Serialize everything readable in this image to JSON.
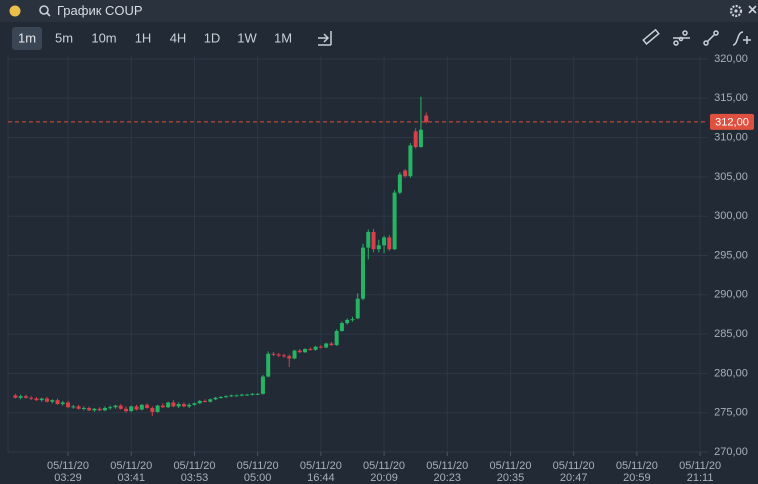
{
  "window": {
    "title": "График COUP"
  },
  "toolbar": {
    "intervals": [
      "1m",
      "5m",
      "10m",
      "1H",
      "4H",
      "1D",
      "1W",
      "1M"
    ],
    "selected": 0
  },
  "chart_data": {
    "type": "candlestick",
    "up_color": "#27b364",
    "down_color": "#d8404b",
    "x": [
      -10,
      -9,
      -8,
      -7,
      -6,
      -5,
      -4,
      -3,
      -2,
      -1,
      0,
      1,
      2,
      3,
      4,
      5,
      6,
      7,
      8,
      9,
      10,
      11,
      12,
      13,
      14,
      15,
      16,
      17,
      18,
      19,
      20,
      21,
      22,
      23,
      24,
      25,
      26,
      27,
      28,
      29,
      30,
      31,
      32,
      33,
      34,
      35,
      36,
      37,
      38,
      39,
      40,
      41,
      42,
      43,
      44,
      45,
      46,
      47,
      48,
      49,
      50,
      51,
      52,
      53,
      54,
      55,
      56,
      57,
      58,
      59,
      60,
      61,
      62,
      63,
      64,
      65,
      66,
      67,
      68
    ],
    "open": [
      277.2,
      276.9,
      277.1,
      276.9,
      276.8,
      276.6,
      276.8,
      276.4,
      276.6,
      276.1,
      276.3,
      275.7,
      275.8,
      275.5,
      275.6,
      275.3,
      275.5,
      275.3,
      275.6,
      275.7,
      275.9,
      275.5,
      275.2,
      275.8,
      275.4,
      276.0,
      275.6,
      275.1,
      275.9,
      275.7,
      276.3,
      275.8,
      276.1,
      275.8,
      276.0,
      276.2,
      276.5,
      276.4,
      276.7,
      276.9,
      277.0,
      277.1,
      277.2,
      277.2,
      277.3,
      277.3,
      277.4,
      277.4,
      279.6,
      282.5,
      282.4,
      282.3,
      282.2,
      281.9,
      282.9,
      282.7,
      283.1,
      283.0,
      283.4,
      283.3,
      283.8,
      283.6,
      285.4,
      286.4,
      286.8,
      287.0,
      289.5,
      296.0,
      298.0,
      295.8,
      296.3,
      297.3,
      295.8,
      303.0,
      305.8,
      305.1,
      310.8,
      308.8,
      312.8
    ],
    "high": [
      277.4,
      277.3,
      277.3,
      277.1,
      277.0,
      276.9,
      277.0,
      276.7,
      276.8,
      276.5,
      276.5,
      276.0,
      276.0,
      275.8,
      275.8,
      275.6,
      275.7,
      275.8,
      275.9,
      276.0,
      276.1,
      275.8,
      275.9,
      276.0,
      276.1,
      276.2,
      275.8,
      276.0,
      276.2,
      276.4,
      276.6,
      276.3,
      276.3,
      276.2,
      276.3,
      276.6,
      276.7,
      276.8,
      277.0,
      277.1,
      277.2,
      277.3,
      277.3,
      277.4,
      277.4,
      277.5,
      277.5,
      279.8,
      282.8,
      282.7,
      282.6,
      282.5,
      282.4,
      283.0,
      283.1,
      283.2,
      283.3,
      283.5,
      283.6,
      283.9,
      284.0,
      285.6,
      286.6,
      287.0,
      287.2,
      290.2,
      296.5,
      298.3,
      298.4,
      297.0,
      297.5,
      297.6,
      303.3,
      305.6,
      306.0,
      309.3,
      311.2,
      315.2,
      313.2
    ],
    "low": [
      276.8,
      276.7,
      276.8,
      276.6,
      276.5,
      276.4,
      276.3,
      276.2,
      276.0,
      275.9,
      275.6,
      275.5,
      275.4,
      275.3,
      275.2,
      275.1,
      275.2,
      275.2,
      275.4,
      275.5,
      275.4,
      275.0,
      275.1,
      275.3,
      275.3,
      275.5,
      274.6,
      275.0,
      275.6,
      275.6,
      275.7,
      275.6,
      275.7,
      275.6,
      275.9,
      276.1,
      276.3,
      276.3,
      276.6,
      276.8,
      276.9,
      277.0,
      277.1,
      277.1,
      277.2,
      277.2,
      277.3,
      277.3,
      279.5,
      282.2,
      282.1,
      282.0,
      280.8,
      281.8,
      282.6,
      282.6,
      282.9,
      282.9,
      283.2,
      283.2,
      283.5,
      283.5,
      285.3,
      286.2,
      286.6,
      286.9,
      289.3,
      294.5,
      295.4,
      295.4,
      295.3,
      295.6,
      295.7,
      302.8,
      304.9,
      304.9,
      308.6,
      308.7,
      311.8
    ],
    "close": [
      276.9,
      277.1,
      276.9,
      276.8,
      276.6,
      276.8,
      276.4,
      276.6,
      276.1,
      276.3,
      275.7,
      275.8,
      275.5,
      275.6,
      275.3,
      275.5,
      275.3,
      275.6,
      275.7,
      275.9,
      275.5,
      275.2,
      275.8,
      275.4,
      276.0,
      275.6,
      275.1,
      275.9,
      275.7,
      276.3,
      275.8,
      276.1,
      275.8,
      276.0,
      276.2,
      276.5,
      276.4,
      276.7,
      276.9,
      277.0,
      277.1,
      277.2,
      277.2,
      277.3,
      277.3,
      277.4,
      277.4,
      279.6,
      282.5,
      282.4,
      282.3,
      282.2,
      281.9,
      282.9,
      282.7,
      283.1,
      283.0,
      283.4,
      283.3,
      283.8,
      283.6,
      285.4,
      286.4,
      286.8,
      286.9,
      289.5,
      296.0,
      298.0,
      295.8,
      296.3,
      297.3,
      295.8,
      303.0,
      305.3,
      305.1,
      309.0,
      308.8,
      311.0,
      312.0
    ],
    "xlim": [
      -11.4,
      121.5
    ],
    "xticks": [
      {
        "value": 0,
        "label": "05/11/20\n03:29"
      },
      {
        "value": 12,
        "label": "05/11/20\n03:41"
      },
      {
        "value": 24,
        "label": "05/11/20\n03:53"
      },
      {
        "value": 36,
        "label": "05/11/20\n05:00"
      },
      {
        "value": 48,
        "label": "05/11/20\n16:44"
      },
      {
        "value": 60,
        "label": "05/11/20\n20:09"
      },
      {
        "value": 72,
        "label": "05/11/20\n20:23"
      },
      {
        "value": 84,
        "label": "05/11/20\n20:35"
      },
      {
        "value": 96,
        "label": "05/11/20\n20:47"
      },
      {
        "value": 108,
        "label": "05/11/20\n20:59"
      },
      {
        "value": 120,
        "label": "05/11/20\n21:11"
      }
    ],
    "ylim": [
      270,
      320
    ],
    "yticks": [
      {
        "value": 270,
        "label": "270,00"
      },
      {
        "value": 275,
        "label": "275,00"
      },
      {
        "value": 280,
        "label": "280,00"
      },
      {
        "value": 285,
        "label": "285,00"
      },
      {
        "value": 290,
        "label": "290,00"
      },
      {
        "value": 295,
        "label": "295,00"
      },
      {
        "value": 300,
        "label": "300,00"
      },
      {
        "value": 305,
        "label": "305,00"
      },
      {
        "value": 310,
        "label": "310,00"
      },
      {
        "value": 315,
        "label": "315,00"
      },
      {
        "value": 320,
        "label": "320,00"
      }
    ],
    "last_price": {
      "value": 312,
      "label": "312,00",
      "color": "#e0503f"
    },
    "grid": true
  }
}
